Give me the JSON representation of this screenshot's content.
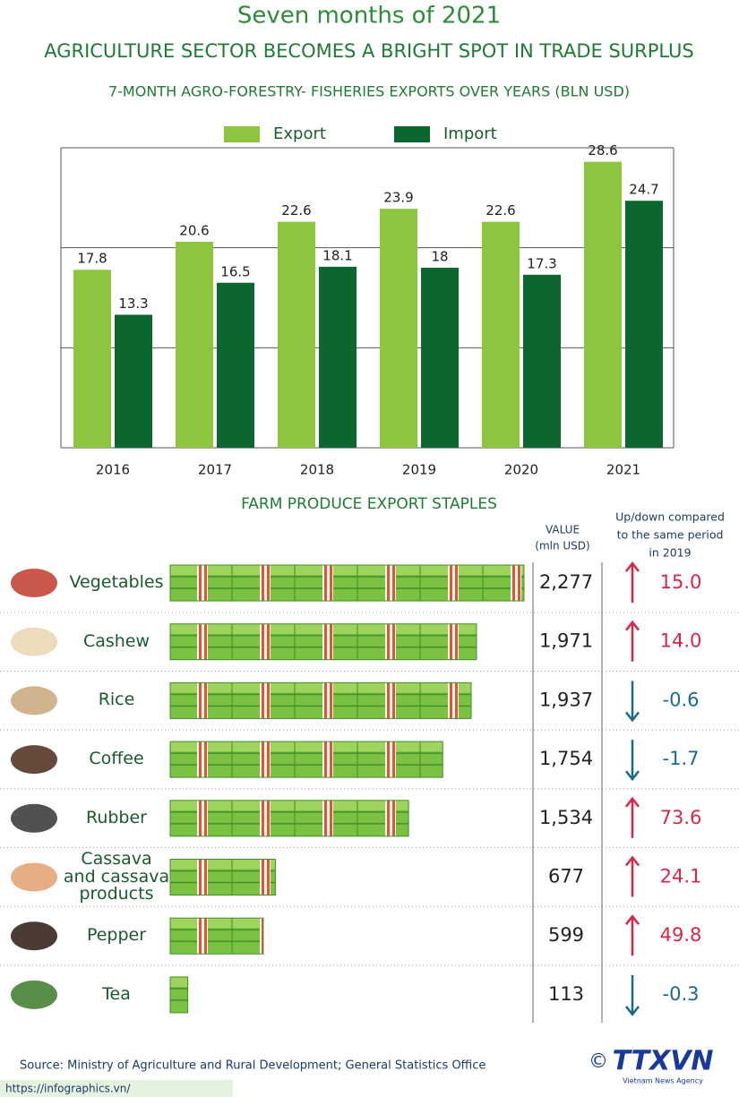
{
  "title": "Seven months of 2021",
  "headline": "AGRICULTURE SECTOR BECOMES A BRIGHT SPOT IN TRADE SURPLUS",
  "chart_data": [
    {
      "type": "bar",
      "title": "7-MONTH AGRO-FORESTRY- FISHERIES EXPORTS OVER YEARS (BLN USD)",
      "categories": [
        "2016",
        "2017",
        "2018",
        "2019",
        "2020",
        "2021"
      ],
      "series": [
        {
          "name": "Export",
          "color": "#8cc63f",
          "values": [
            17.8,
            20.6,
            22.6,
            23.9,
            22.6,
            28.6
          ]
        },
        {
          "name": "Import",
          "color": "#0b6630",
          "values": [
            13.3,
            16.5,
            18.1,
            18,
            17.3,
            24.7
          ]
        }
      ],
      "ylim": [
        0,
        30
      ],
      "yticks": [
        0,
        10,
        20,
        30
      ],
      "grid": true,
      "legend": "top"
    },
    {
      "type": "pictograph",
      "title": "FARM PRODUCE EXPORT STAPLES",
      "value_header": [
        "VALUE",
        "(mln USD)"
      ],
      "change_header": [
        "Up/down compared",
        "to the same period",
        "in 2019"
      ],
      "categories": [
        "Vegetables",
        "Cashew",
        "Rice",
        "Coffee",
        "Rubber",
        "Cassava and cassava products",
        "Pepper",
        "Tea"
      ],
      "values": [
        2277,
        1971,
        1937,
        1754,
        1534,
        677,
        599,
        113
      ],
      "value_labels": [
        "2,277",
        "1,971",
        "1,937",
        "1,754",
        "1,534",
        "677",
        "599",
        "113"
      ],
      "changes": [
        15.0,
        14.0,
        -0.6,
        -1.7,
        73.6,
        24.1,
        49.8,
        -0.3
      ],
      "change_labels": [
        "15.0",
        "14.0",
        "-0.6",
        "-1.7",
        "73.6",
        "24.1",
        "49.8",
        "-0.3"
      ],
      "color": "#7cc242",
      "up_color": "#d6264a",
      "down_color": "#1a6a8a"
    }
  ],
  "source": "Source: Ministry of Agriculture and Rural Development;  General Statistics Office",
  "url": "https://infographics.vn/",
  "logo": "TTXVN",
  "agency": "Vietnam News Agency"
}
